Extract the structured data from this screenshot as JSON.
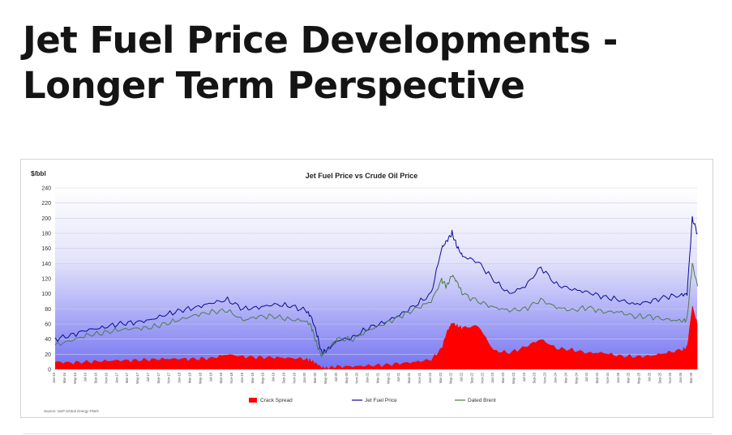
{
  "page": {
    "title_line1": "Jet Fuel Price Developments -",
    "title_line2": "Longer Term Perspective"
  },
  "chart_data": {
    "type": "line",
    "title": "Jet Fuel Price vs Crude Oil Price",
    "ylabel": "$/bbl",
    "xlabel": "",
    "ylim": [
      0,
      240
    ],
    "yticks": [
      0,
      20,
      40,
      60,
      80,
      100,
      120,
      140,
      160,
      180,
      200,
      220,
      240
    ],
    "grid": true,
    "legend": "bottom",
    "source": "Source: S&P Global Energy Platts",
    "background_gradient": [
      "#ffffff",
      "#7474f2"
    ],
    "x_ticks": [
      "Jan-16",
      "Mar-16",
      "May-16",
      "Jul-16",
      "Sep-16",
      "Nov-16",
      "Jan-17",
      "Mar-17",
      "May-17",
      "Jul-17",
      "Sep-17",
      "Nov-17",
      "Jan-18",
      "Mar-18",
      "May-18",
      "Jul-18",
      "Sep-18",
      "Nov-18",
      "Jan-19",
      "Mar-19",
      "May-19",
      "Jul-19",
      "Sep-19",
      "Nov-19",
      "Jan-20",
      "Mar-20",
      "May-20",
      "Jul-20",
      "Sep-20",
      "Nov-20",
      "Jan-21",
      "Mar-21",
      "May-21",
      "Jul-21",
      "Sep-21",
      "Nov-21",
      "Jan-22",
      "Mar-22",
      "May-22",
      "Jul-22",
      "Sep-22",
      "Nov-22",
      "Jan-23",
      "Mar-23",
      "May-23",
      "Jul-23",
      "Sep-23",
      "Nov-23",
      "Jan-24",
      "Mar-24",
      "May-24",
      "Jul-24",
      "Sep-24",
      "Nov-24",
      "Jan-25",
      "Mar-25",
      "May-25",
      "Jul-25",
      "Sep-25",
      "Nov-25",
      "Jan-26",
      "Mar-26"
    ],
    "x": [
      "Jan-16",
      "Apr-16",
      "Jul-16",
      "Oct-16",
      "Jan-17",
      "Apr-17",
      "Jul-17",
      "Oct-17",
      "Jan-18",
      "Apr-18",
      "Jul-18",
      "Oct-18",
      "Jan-19",
      "Apr-19",
      "Jul-19",
      "Oct-19",
      "Jan-20",
      "Feb-20",
      "Mar-20",
      "Apr-20",
      "May-20",
      "Jul-20",
      "Oct-20",
      "Jan-21",
      "Apr-21",
      "Jul-21",
      "Oct-21",
      "Jan-22",
      "Mar-22",
      "Apr-22",
      "May-22",
      "Jun-22",
      "Jul-22",
      "Oct-22",
      "Jan-23",
      "Apr-23",
      "Jul-23",
      "Oct-23",
      "Jan-24",
      "Apr-24",
      "Jul-24",
      "Oct-24",
      "Jan-25",
      "Apr-25",
      "Jul-25",
      "Oct-25",
      "Jan-26",
      "Feb-26",
      "Mar-26",
      "Apr-26"
    ],
    "series": [
      {
        "name": "Crack Spread",
        "color": "#ff0000",
        "style": "area",
        "values": [
          10,
          9,
          10,
          11,
          12,
          12,
          13,
          14,
          14,
          14,
          15,
          20,
          17,
          16,
          16,
          15,
          14,
          12,
          8,
          3,
          2,
          4,
          4,
          5,
          6,
          8,
          10,
          13,
          28,
          50,
          62,
          58,
          55,
          58,
          25,
          22,
          30,
          40,
          28,
          26,
          22,
          22,
          18,
          17,
          18,
          22,
          26,
          30,
          85,
          60
        ]
      },
      {
        "name": "Jet Fuel Price",
        "color": "#0a0a96",
        "style": "line",
        "values": [
          40,
          45,
          52,
          55,
          60,
          62,
          65,
          72,
          78,
          82,
          88,
          92,
          80,
          82,
          86,
          84,
          78,
          70,
          50,
          22,
          25,
          38,
          42,
          55,
          62,
          72,
          85,
          100,
          160,
          170,
          180,
          162,
          150,
          142,
          118,
          100,
          110,
          135,
          112,
          106,
          102,
          96,
          92,
          86,
          90,
          96,
          98,
          100,
          200,
          180
        ]
      },
      {
        "name": "Dated Brent",
        "color": "#4e7a4e",
        "style": "line",
        "values": [
          32,
          38,
          45,
          48,
          52,
          54,
          55,
          60,
          66,
          72,
          76,
          78,
          65,
          70,
          70,
          66,
          64,
          58,
          35,
          18,
          25,
          40,
          40,
          52,
          60,
          70,
          80,
          90,
          118,
          110,
          125,
          115,
          100,
          90,
          82,
          78,
          80,
          92,
          82,
          78,
          82,
          76,
          76,
          70,
          70,
          66,
          64,
          66,
          140,
          110
        ]
      }
    ]
  }
}
